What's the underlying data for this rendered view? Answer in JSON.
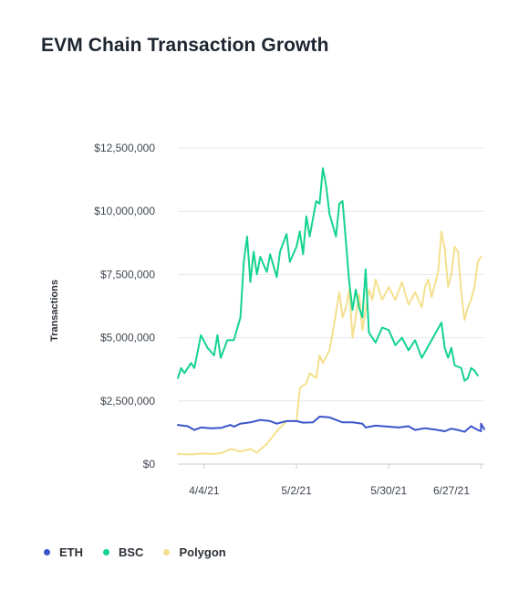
{
  "chart_data": {
    "type": "line",
    "title": "EVM Chain Transaction Growth",
    "xlabel": "",
    "ylabel": "Transactions",
    "ylim": [
      0,
      12500000
    ],
    "y_ticks": [
      0,
      2500000,
      5000000,
      7500000,
      10000000,
      12500000
    ],
    "y_tick_labels": [
      "$0",
      "$2,500,000",
      "$5,000,000",
      "$7,500,000",
      "$10,000,000",
      "$12,500,000"
    ],
    "x_ticks": [
      "2021-04-04",
      "2021-05-02",
      "2021-05-30",
      "2021-06-27"
    ],
    "x_tick_labels": [
      "4/4/21",
      "5/2/21",
      "5/30/21",
      "6/27/21"
    ],
    "xlim": [
      "2021-03-27",
      "2021-06-28"
    ],
    "grid": true,
    "legend_position": "bottom-left",
    "series": [
      {
        "name": "ETH",
        "color": "#3b55c9",
        "points": [
          [
            "2021-03-27",
            1550000
          ],
          [
            "2021-03-30",
            1500000
          ],
          [
            "2021-04-01",
            1350000
          ],
          [
            "2021-04-03",
            1450000
          ],
          [
            "2021-04-06",
            1420000
          ],
          [
            "2021-04-09",
            1430000
          ],
          [
            "2021-04-12",
            1550000
          ],
          [
            "2021-04-13",
            1480000
          ],
          [
            "2021-04-15",
            1600000
          ],
          [
            "2021-04-18",
            1650000
          ],
          [
            "2021-04-21",
            1750000
          ],
          [
            "2021-04-24",
            1700000
          ],
          [
            "2021-04-26",
            1600000
          ],
          [
            "2021-04-29",
            1700000
          ],
          [
            "2021-05-02",
            1700000
          ],
          [
            "2021-05-04",
            1640000
          ],
          [
            "2021-05-07",
            1650000
          ],
          [
            "2021-05-09",
            1880000
          ],
          [
            "2021-05-12",
            1850000
          ],
          [
            "2021-05-14",
            1750000
          ],
          [
            "2021-05-16",
            1650000
          ],
          [
            "2021-05-19",
            1650000
          ],
          [
            "2021-05-22",
            1600000
          ],
          [
            "2021-05-23",
            1450000
          ],
          [
            "2021-05-26",
            1520000
          ],
          [
            "2021-05-30",
            1480000
          ],
          [
            "2021-06-02",
            1450000
          ],
          [
            "2021-06-05",
            1500000
          ],
          [
            "2021-06-07",
            1350000
          ],
          [
            "2021-06-10",
            1420000
          ],
          [
            "2021-06-13",
            1370000
          ],
          [
            "2021-06-16",
            1300000
          ],
          [
            "2021-06-18",
            1400000
          ],
          [
            "2021-06-20",
            1350000
          ],
          [
            "2021-06-22",
            1280000
          ],
          [
            "2021-06-24",
            1500000
          ],
          [
            "2021-06-26",
            1350000
          ],
          [
            "2021-06-27",
            1300000
          ],
          [
            "2021-06-27",
            1600000
          ],
          [
            "2021-06-28",
            1380000
          ]
        ]
      },
      {
        "name": "BSC",
        "color": "#14d38e",
        "points": [
          [
            "2021-03-27",
            3400000
          ],
          [
            "2021-03-28",
            3800000
          ],
          [
            "2021-03-29",
            3600000
          ],
          [
            "2021-03-31",
            4000000
          ],
          [
            "2021-04-01",
            3800000
          ],
          [
            "2021-04-03",
            5100000
          ],
          [
            "2021-04-05",
            4600000
          ],
          [
            "2021-04-07",
            4300000
          ],
          [
            "2021-04-08",
            5100000
          ],
          [
            "2021-04-09",
            4200000
          ],
          [
            "2021-04-11",
            4900000
          ],
          [
            "2021-04-13",
            4900000
          ],
          [
            "2021-04-15",
            5800000
          ],
          [
            "2021-04-16",
            8000000
          ],
          [
            "2021-04-17",
            9000000
          ],
          [
            "2021-04-18",
            7200000
          ],
          [
            "2021-04-19",
            8400000
          ],
          [
            "2021-04-20",
            7500000
          ],
          [
            "2021-04-21",
            8200000
          ],
          [
            "2021-04-23",
            7600000
          ],
          [
            "2021-04-24",
            8300000
          ],
          [
            "2021-04-26",
            7400000
          ],
          [
            "2021-04-27",
            8400000
          ],
          [
            "2021-04-29",
            9100000
          ],
          [
            "2021-04-30",
            8000000
          ],
          [
            "2021-05-02",
            8600000
          ],
          [
            "2021-05-03",
            9200000
          ],
          [
            "2021-05-04",
            8300000
          ],
          [
            "2021-05-05",
            9800000
          ],
          [
            "2021-05-06",
            9000000
          ],
          [
            "2021-05-08",
            10400000
          ],
          [
            "2021-05-09",
            10300000
          ],
          [
            "2021-05-10",
            11700000
          ],
          [
            "2021-05-11",
            11000000
          ],
          [
            "2021-05-12",
            9900000
          ],
          [
            "2021-05-14",
            9000000
          ],
          [
            "2021-05-15",
            10300000
          ],
          [
            "2021-05-16",
            10400000
          ],
          [
            "2021-05-18",
            7200000
          ],
          [
            "2021-05-19",
            6100000
          ],
          [
            "2021-05-20",
            6900000
          ],
          [
            "2021-05-21",
            6200000
          ],
          [
            "2021-05-22",
            5800000
          ],
          [
            "2021-05-23",
            7700000
          ],
          [
            "2021-05-24",
            5200000
          ],
          [
            "2021-05-26",
            4800000
          ],
          [
            "2021-05-28",
            5400000
          ],
          [
            "2021-05-30",
            5300000
          ],
          [
            "2021-06-01",
            4700000
          ],
          [
            "2021-06-03",
            5000000
          ],
          [
            "2021-06-05",
            4500000
          ],
          [
            "2021-06-07",
            4900000
          ],
          [
            "2021-06-09",
            4200000
          ],
          [
            "2021-06-12",
            4900000
          ],
          [
            "2021-06-15",
            5600000
          ],
          [
            "2021-06-16",
            4600000
          ],
          [
            "2021-06-17",
            4200000
          ],
          [
            "2021-06-18",
            4600000
          ],
          [
            "2021-06-19",
            3900000
          ],
          [
            "2021-06-21",
            3800000
          ],
          [
            "2021-06-22",
            3300000
          ],
          [
            "2021-06-23",
            3400000
          ],
          [
            "2021-06-24",
            3800000
          ],
          [
            "2021-06-25",
            3700000
          ],
          [
            "2021-06-26",
            3500000
          ]
        ]
      },
      {
        "name": "Polygon",
        "color": "#f4e08e",
        "points": [
          [
            "2021-03-27",
            400000
          ],
          [
            "2021-03-31",
            380000
          ],
          [
            "2021-04-03",
            420000
          ],
          [
            "2021-04-06",
            400000
          ],
          [
            "2021-04-09",
            430000
          ],
          [
            "2021-04-12",
            600000
          ],
          [
            "2021-04-15",
            500000
          ],
          [
            "2021-04-18",
            600000
          ],
          [
            "2021-04-20",
            450000
          ],
          [
            "2021-04-23",
            800000
          ],
          [
            "2021-04-26",
            1300000
          ],
          [
            "2021-04-29",
            1700000
          ],
          [
            "2021-05-02",
            1700000
          ],
          [
            "2021-05-03",
            3000000
          ],
          [
            "2021-05-05",
            3200000
          ],
          [
            "2021-05-06",
            3600000
          ],
          [
            "2021-05-08",
            3400000
          ],
          [
            "2021-05-09",
            4300000
          ],
          [
            "2021-05-10",
            4000000
          ],
          [
            "2021-05-12",
            4500000
          ],
          [
            "2021-05-13",
            5200000
          ],
          [
            "2021-05-15",
            6800000
          ],
          [
            "2021-05-16",
            5800000
          ],
          [
            "2021-05-17",
            6200000
          ],
          [
            "2021-05-18",
            6900000
          ],
          [
            "2021-05-19",
            5000000
          ],
          [
            "2021-05-21",
            6700000
          ],
          [
            "2021-05-22",
            5300000
          ],
          [
            "2021-05-24",
            6900000
          ],
          [
            "2021-05-25",
            6500000
          ],
          [
            "2021-05-26",
            7300000
          ],
          [
            "2021-05-28",
            6500000
          ],
          [
            "2021-05-30",
            7000000
          ],
          [
            "2021-06-01",
            6500000
          ],
          [
            "2021-06-03",
            7200000
          ],
          [
            "2021-06-05",
            6300000
          ],
          [
            "2021-06-07",
            6800000
          ],
          [
            "2021-06-09",
            6200000
          ],
          [
            "2021-06-10",
            7000000
          ],
          [
            "2021-06-11",
            7300000
          ],
          [
            "2021-06-12",
            6600000
          ],
          [
            "2021-06-14",
            7600000
          ],
          [
            "2021-06-15",
            9200000
          ],
          [
            "2021-06-16",
            8500000
          ],
          [
            "2021-06-17",
            7000000
          ],
          [
            "2021-06-18",
            7500000
          ],
          [
            "2021-06-19",
            8600000
          ],
          [
            "2021-06-20",
            8400000
          ],
          [
            "2021-06-21",
            6800000
          ],
          [
            "2021-06-22",
            5700000
          ],
          [
            "2021-06-23",
            6200000
          ],
          [
            "2021-06-24",
            6500000
          ],
          [
            "2021-06-25",
            7000000
          ],
          [
            "2021-06-26",
            8000000
          ],
          [
            "2021-06-27",
            8200000
          ]
        ]
      }
    ]
  }
}
